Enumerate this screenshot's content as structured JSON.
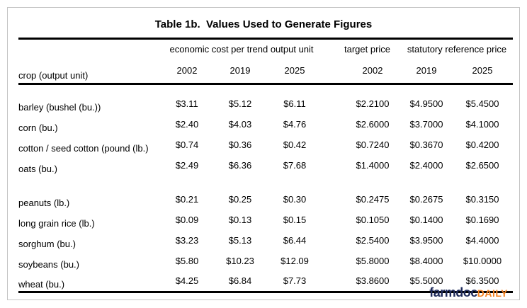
{
  "table": {
    "title": "Table 1b.  Values Used to Generate Figures",
    "row_header_label": "crop (output unit)",
    "column_groups": {
      "economic_cost": {
        "label": "economic cost per trend output unit",
        "years": [
          "2002",
          "2019",
          "2025"
        ]
      },
      "target_price": {
        "label": "target price",
        "years": [
          "2002"
        ]
      },
      "statutory_reference": {
        "label": "statutory reference price",
        "years": [
          "2019",
          "2025"
        ]
      }
    },
    "crop_groups": [
      {
        "rows": [
          {
            "label": "barley (bushel (bu.))",
            "values": [
              "$3.11",
              "$5.12",
              "$6.11",
              "$2.2100",
              "$4.9500",
              "$5.4500"
            ]
          },
          {
            "label": "corn (bu.)",
            "values": [
              "$2.40",
              "$4.03",
              "$4.76",
              "$2.6000",
              "$3.7000",
              "$4.1000"
            ]
          },
          {
            "label": "cotton / seed cotton (pound (lb.)",
            "values": [
              "$0.74",
              "$0.36",
              "$0.42",
              "$0.7240",
              "$0.3670",
              "$0.4200"
            ]
          },
          {
            "label": "oats (bu.)",
            "values": [
              "$2.49",
              "$6.36",
              "$7.68",
              "$1.4000",
              "$2.4000",
              "$2.6500"
            ]
          }
        ]
      },
      {
        "rows": [
          {
            "label": "peanuts (lb.)",
            "values": [
              "$0.21",
              "$0.25",
              "$0.30",
              "$0.2475",
              "$0.2675",
              "$0.3150"
            ]
          },
          {
            "label": "long grain rice (lb.)",
            "values": [
              "$0.09",
              "$0.13",
              "$0.15",
              "$0.1050",
              "$0.1400",
              "$0.1690"
            ]
          },
          {
            "label": "sorghum (bu.)",
            "values": [
              "$3.23",
              "$5.13",
              "$6.44",
              "$2.5400",
              "$3.9500",
              "$4.4000"
            ]
          },
          {
            "label": "soybeans (bu.)",
            "values": [
              "$5.80",
              "$10.23",
              "$12.09",
              "$5.8000",
              "$8.4000",
              "$10.0000"
            ]
          },
          {
            "label": "wheat (bu.)",
            "values": [
              "$4.25",
              "$6.84",
              "$7.73",
              "$3.8600",
              "$5.5000",
              "$6.3500"
            ]
          }
        ]
      }
    ]
  },
  "branding": {
    "farmdoc_text": "farmdoc",
    "daily_text": "DAILY",
    "farmdoc_color": "#1e2a5a",
    "daily_color": "#f5821f"
  }
}
